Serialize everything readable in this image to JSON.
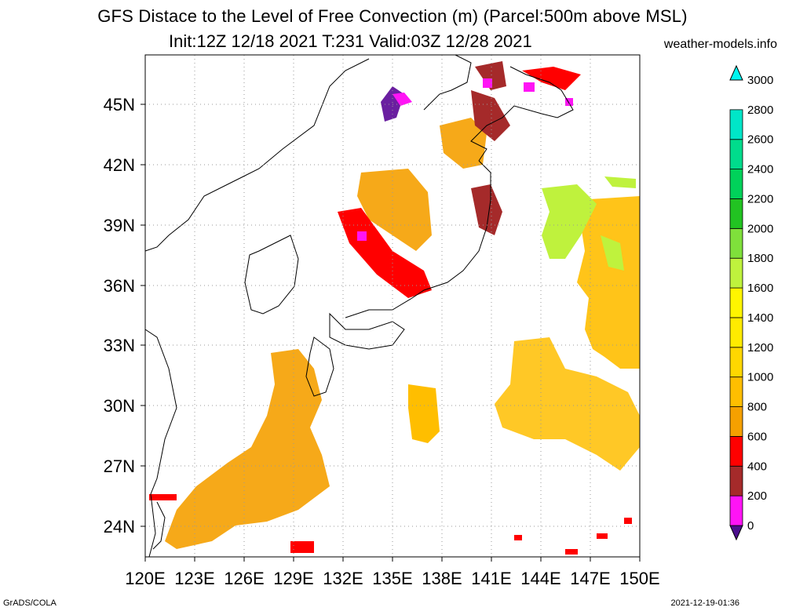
{
  "header": {
    "title": "GFS Distace to the Level of Free Convection (m) (Parcel:500m above MSL)",
    "subtitle": "Init:12Z 12/18 2021 T:231 Valid:03Z 12/28 2021",
    "site": "weather-models.info"
  },
  "footer": {
    "software": "GrADS/COLA",
    "timestamp": "2021-12-19-01:36"
  },
  "map": {
    "lon_range": [
      120,
      150
    ],
    "lat_range": [
      22.5,
      47.5
    ],
    "lon_labels": [
      "120E",
      "123E",
      "126E",
      "129E",
      "132E",
      "135E",
      "138E",
      "141E",
      "144E",
      "147E",
      "150E"
    ],
    "lat_labels": [
      "24N",
      "27N",
      "30N",
      "33N",
      "36N",
      "39N",
      "42N",
      "45N"
    ],
    "grid": "dotted"
  },
  "colorbar": {
    "ticks": [
      "0",
      "200",
      "400",
      "600",
      "800",
      "1000",
      "1200",
      "1400",
      "1600",
      "1800",
      "2000",
      "2200",
      "2400",
      "2600",
      "2800",
      "3000"
    ],
    "colors": [
      "#4b0f8c",
      "#ff14f5",
      "#a52a2a",
      "#ff0000",
      "#f5a000",
      "#ffbe00",
      "#ffd700",
      "#ffeb00",
      "#fff500",
      "#bff23d",
      "#7fe03b",
      "#22c322",
      "#00d25a",
      "#00dc8c",
      "#00e6c8",
      "#00f5f0"
    ]
  },
  "field_regions": [
    {
      "name": "pacific-east-high",
      "color": "#ffbe00"
    },
    {
      "name": "pacific-east-green",
      "color": "#bff23d"
    },
    {
      "name": "ryukyu-band",
      "color": "#f5a000"
    },
    {
      "name": "sea-of-japan",
      "color": "#f5a000"
    },
    {
      "name": "hokkaido-low",
      "color": "#a52a2a"
    },
    {
      "name": "magenta-spots",
      "color": "#ff14f5"
    }
  ]
}
